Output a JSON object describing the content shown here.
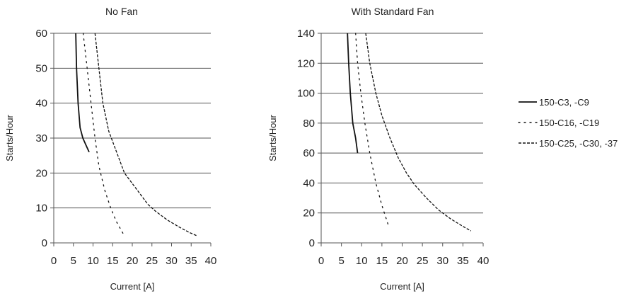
{
  "chart_data": [
    {
      "type": "line",
      "title": "No Fan",
      "xlabel": "Current [A]",
      "ylabel": "Starts/Hour",
      "xlim": [
        0,
        40
      ],
      "ylim": [
        0,
        60
      ],
      "xticks": [
        "0",
        "5",
        "10",
        "15",
        "20",
        "25",
        "30",
        "35",
        "40"
      ],
      "yticks": [
        "0",
        "10",
        "20",
        "30",
        "40",
        "50",
        "60"
      ],
      "grid": "horizontal",
      "series": [
        {
          "name": "150-C3, -C9",
          "style": "solid",
          "x": [
            5.6,
            5.8,
            6.2,
            6.7,
            7.4,
            8.2,
            9.0
          ],
          "y": [
            60,
            50,
            40,
            33,
            30,
            28,
            26
          ]
        },
        {
          "name": "150-C16, -C19",
          "style": "dotted",
          "x": [
            7.5,
            8.5,
            9.5,
            10.5,
            11.5,
            13.0,
            14.5,
            16.0,
            18.0
          ],
          "y": [
            60,
            50,
            40,
            30,
            22,
            15,
            10,
            6,
            2
          ]
        },
        {
          "name": "150-C25, -C30, -37",
          "style": "dashed",
          "x": [
            10.5,
            11.5,
            12.5,
            14.0,
            16.0,
            18.0,
            20.0,
            22.0,
            24.0,
            26.0,
            29.0,
            32.0,
            34.5,
            36.5
          ],
          "y": [
            60,
            50,
            40,
            32,
            26,
            20,
            17,
            14,
            11,
            9,
            6.5,
            4.5,
            3,
            2
          ]
        }
      ]
    },
    {
      "type": "line",
      "title": "With Standard Fan",
      "xlabel": "Current [A]",
      "ylabel": "Starts/Hour",
      "xlim": [
        0,
        40
      ],
      "ylim": [
        0,
        140
      ],
      "xticks": [
        "0",
        "5",
        "10",
        "15",
        "20",
        "25",
        "30",
        "35",
        "40"
      ],
      "yticks": [
        "0",
        "20",
        "40",
        "60",
        "80",
        "100",
        "120",
        "140"
      ],
      "grid": "horizontal",
      "series": [
        {
          "name": "150-C3, -C9",
          "style": "solid",
          "x": [
            6.5,
            6.8,
            7.2,
            7.8,
            8.5,
            9.0
          ],
          "y": [
            140,
            120,
            100,
            80,
            70,
            60
          ]
        },
        {
          "name": "150-C16, -C19",
          "style": "dotted",
          "x": [
            8.5,
            9.0,
            9.8,
            10.8,
            12.0,
            13.5,
            15.0,
            16.8
          ],
          "y": [
            140,
            120,
            100,
            80,
            60,
            40,
            25,
            10
          ]
        },
        {
          "name": "150-C25, -C30, -37",
          "style": "dashed",
          "x": [
            11.0,
            12.0,
            13.5,
            15.0,
            17.0,
            19.0,
            21.0,
            23.0,
            26.0,
            29.0,
            32.0,
            35.0,
            37.0
          ],
          "y": [
            140,
            120,
            100,
            85,
            70,
            57,
            47,
            39,
            30,
            22,
            16,
            11,
            8
          ]
        }
      ]
    }
  ],
  "legend": {
    "placement": "right",
    "items": [
      {
        "label": "150-C3, -C9",
        "style": "solid"
      },
      {
        "label": "150-C16, -C19",
        "style": "dotted"
      },
      {
        "label": "150-C25, -C30, -37",
        "style": "dashed"
      }
    ]
  }
}
